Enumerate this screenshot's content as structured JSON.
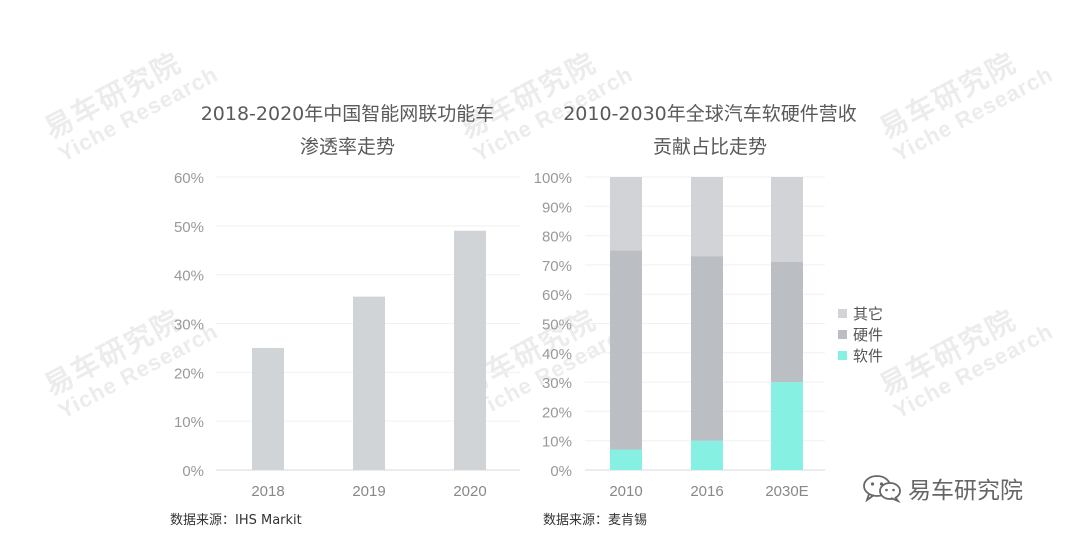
{
  "watermark": {
    "cn": "易车研究院",
    "en": "Yiche Research"
  },
  "left": {
    "title_line1": "2018-2020年中国智能网联功能车",
    "title_line2": "渗透率走势",
    "source": "数据来源：IHS Markit"
  },
  "right": {
    "title_line1": "2010-2030年全球汽车软硬件营收",
    "title_line2": "贡献占比走势",
    "source": "数据来源：麦肯锡"
  },
  "brand": {
    "name": "易车研究院",
    "icon": "wechat-icon"
  },
  "colors": {
    "bar": "#d1d4d7",
    "other": "#d1d3d6",
    "hardware": "#bbbec3",
    "software": "#86f1e3"
  },
  "chart_data": [
    {
      "type": "bar",
      "categories": [
        "2018",
        "2019",
        "2020"
      ],
      "values": [
        25,
        35.5,
        49
      ],
      "ylim": [
        0,
        60
      ],
      "yticks": [
        "0%",
        "10%",
        "20%",
        "30%",
        "40%",
        "50%",
        "60%"
      ],
      "grid": true
    },
    {
      "type": "bar",
      "stacked": true,
      "categories": [
        "2010",
        "2016",
        "2030E"
      ],
      "series": [
        {
          "name": "软件",
          "values": [
            7,
            10,
            30
          ]
        },
        {
          "name": "硬件",
          "values": [
            68,
            63,
            41
          ]
        },
        {
          "name": "其它",
          "values": [
            25,
            27,
            29
          ]
        }
      ],
      "legend_order": [
        "其它",
        "硬件",
        "软件"
      ],
      "legend_position": "right",
      "ylim": [
        0,
        100
      ],
      "yticks": [
        "0%",
        "10%",
        "20%",
        "30%",
        "40%",
        "50%",
        "60%",
        "70%",
        "80%",
        "90%",
        "100%"
      ],
      "grid": true
    }
  ]
}
